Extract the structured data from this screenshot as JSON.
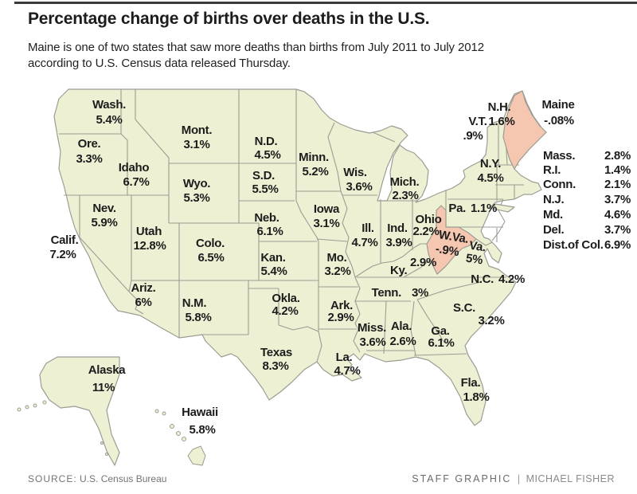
{
  "header": {
    "title": "Percentage change of births over deaths in the U.S.",
    "subtitle1": "Maine is one of two states that saw more deaths than births from July 2011 to July 2012",
    "subtitle2": "according to U.S. Census data released Thursday."
  },
  "footer": {
    "source_label": "SOURCE:",
    "source_text": "U.S. Census Bureau",
    "credit": "STAFF GRAPHIC",
    "credit_sep": "|",
    "credit_name": "MICHAEL FISHER"
  },
  "colors": {
    "state_fill": "#eef0d3",
    "negative_fill": "#f5c7b0",
    "border": "#9c9c94",
    "label_text": "#1c1c1c",
    "footer_text": "#737373"
  },
  "map": {
    "states": [
      {
        "id": "wash",
        "label": "Wash.",
        "value": "5.4%"
      },
      {
        "id": "ore",
        "label": "Ore.",
        "value": "3.3%"
      },
      {
        "id": "idaho",
        "label": "Idaho",
        "value": "6.7%"
      },
      {
        "id": "mont",
        "label": "Mont.",
        "value": "3.1%"
      },
      {
        "id": "wyo",
        "label": "Wyo.",
        "value": "5.3%"
      },
      {
        "id": "nev",
        "label": "Nev.",
        "value": "5.9%"
      },
      {
        "id": "calif",
        "label": "Calif.",
        "value": "7.2%"
      },
      {
        "id": "utah",
        "label": "Utah",
        "value": "12.8%"
      },
      {
        "id": "colo",
        "label": "Colo.",
        "value": "6.5%"
      },
      {
        "id": "ariz",
        "label": "Ariz.",
        "value": "6%"
      },
      {
        "id": "nm",
        "label": "N.M.",
        "value": "5.8%"
      },
      {
        "id": "nd",
        "label": "N.D.",
        "value": "4.5%"
      },
      {
        "id": "sd",
        "label": "S.D.",
        "value": "5.5%"
      },
      {
        "id": "neb",
        "label": "Neb.",
        "value": "6.1%"
      },
      {
        "id": "kan",
        "label": "Kan.",
        "value": "5.4%"
      },
      {
        "id": "okla",
        "label": "Okla.",
        "value": "4.2%"
      },
      {
        "id": "minn",
        "label": "Minn.",
        "value": "5.2%"
      },
      {
        "id": "iowa",
        "label": "Iowa",
        "value": "3.1%"
      },
      {
        "id": "mo",
        "label": "Mo.",
        "value": "3.2%"
      },
      {
        "id": "ark",
        "label": "Ark.",
        "value": "2.9%"
      },
      {
        "id": "wis",
        "label": "Wis.",
        "value": "3.6%"
      },
      {
        "id": "ill",
        "label": "Ill.",
        "value": "4.7%"
      },
      {
        "id": "ind",
        "label": "Ind.",
        "value": "3.9%"
      },
      {
        "id": "mich",
        "label": "Mich.",
        "value": "2.3%"
      },
      {
        "id": "ohio",
        "label": "Ohio",
        "value": "2.2%"
      },
      {
        "id": "texas",
        "label": "Texas",
        "value": "8.3%"
      },
      {
        "id": "la",
        "label": "La.",
        "value": "4.7%"
      },
      {
        "id": "miss",
        "label": "Miss.",
        "value": "3.6%"
      },
      {
        "id": "ala",
        "label": "Ala.",
        "value": "2.6%"
      },
      {
        "id": "ga",
        "label": "Ga.",
        "value": "6.1%"
      },
      {
        "id": "fla",
        "label": "Fla.",
        "value": "1.8%"
      },
      {
        "id": "alaska",
        "label": "Alaska",
        "value": "11%"
      },
      {
        "id": "hawaii",
        "label": "Hawaii",
        "value": "5.8%"
      },
      {
        "id": "ny",
        "label": "N.Y.",
        "value": "4.5%"
      },
      {
        "id": "pa",
        "label": "Pa.",
        "value": "1.1%"
      },
      {
        "id": "nc",
        "label": "N.C.",
        "value": "4.2%"
      },
      {
        "id": "tenn",
        "label": "Tenn.",
        "value": "3%"
      },
      {
        "id": "ky",
        "label": "Ky.",
        "value": "2.9%"
      },
      {
        "id": "va",
        "label": "Va.",
        "value": "5%"
      },
      {
        "id": "sc",
        "label": "S.C.",
        "value": "3.2%"
      },
      {
        "id": "wva",
        "label": "W.Va.",
        "value": "-.9%",
        "negative": true
      },
      {
        "id": "nh",
        "label": "N.H.",
        "value": "1.6%"
      },
      {
        "id": "vt",
        "label": "V.T.",
        "value": ".9%"
      },
      {
        "id": "maine",
        "label": "Maine",
        "value": "-.08%",
        "negative": true
      }
    ],
    "list": [
      {
        "label": "Mass.",
        "value": "2.8%"
      },
      {
        "label": "R.I.",
        "value": "1.4%"
      },
      {
        "label": "Conn.",
        "value": "2.1%"
      },
      {
        "label": "N.J.",
        "value": "3.7%"
      },
      {
        "label": "Md.",
        "value": "4.6%"
      },
      {
        "label": "Del.",
        "value": "3.7%"
      },
      {
        "label": "Dist.of Col.",
        "value": "6.9%"
      }
    ]
  }
}
